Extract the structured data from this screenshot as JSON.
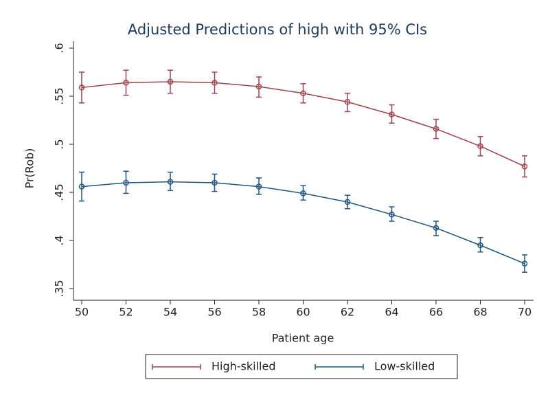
{
  "chart_data": {
    "type": "line",
    "title": "Adjusted Predictions of high with 95% CIs",
    "x_label": "Patient age",
    "y_label": "Pr(Rob)",
    "x": [
      50,
      52,
      54,
      56,
      58,
      60,
      62,
      64,
      66,
      68,
      70
    ],
    "series": [
      {
        "name": "High-skilled",
        "color": "#a4404a",
        "values": [
          0.559,
          0.564,
          0.565,
          0.564,
          0.56,
          0.553,
          0.544,
          0.531,
          0.516,
          0.498,
          0.477
        ],
        "lower": [
          0.543,
          0.551,
          0.553,
          0.553,
          0.549,
          0.543,
          0.534,
          0.522,
          0.506,
          0.488,
          0.466
        ],
        "upper": [
          0.575,
          0.577,
          0.577,
          0.575,
          0.57,
          0.563,
          0.553,
          0.541,
          0.526,
          0.508,
          0.488
        ]
      },
      {
        "name": "Low-skilled",
        "color": "#1f5480",
        "values": [
          0.456,
          0.46,
          0.461,
          0.46,
          0.456,
          0.449,
          0.44,
          0.427,
          0.413,
          0.395,
          0.376
        ],
        "lower": [
          0.441,
          0.449,
          0.452,
          0.451,
          0.448,
          0.442,
          0.433,
          0.42,
          0.405,
          0.388,
          0.367
        ],
        "upper": [
          0.471,
          0.472,
          0.471,
          0.469,
          0.465,
          0.457,
          0.447,
          0.435,
          0.42,
          0.403,
          0.385
        ]
      }
    ],
    "xlim": [
      50,
      70
    ],
    "xticks": [
      50,
      52,
      54,
      56,
      58,
      60,
      62,
      64,
      66,
      68,
      70
    ],
    "ylim": [
      0.35,
      0.6
    ],
    "yticks": [
      {
        "value": 0.35,
        "label": ".35"
      },
      {
        "value": 0.4,
        "label": ".4"
      },
      {
        "value": 0.45,
        "label": ".45"
      },
      {
        "value": 0.5,
        "label": ".5"
      },
      {
        "value": 0.55,
        "label": ".55"
      },
      {
        "value": 0.6,
        "label": ".6"
      }
    ],
    "grid": false,
    "legend": "bottom"
  }
}
